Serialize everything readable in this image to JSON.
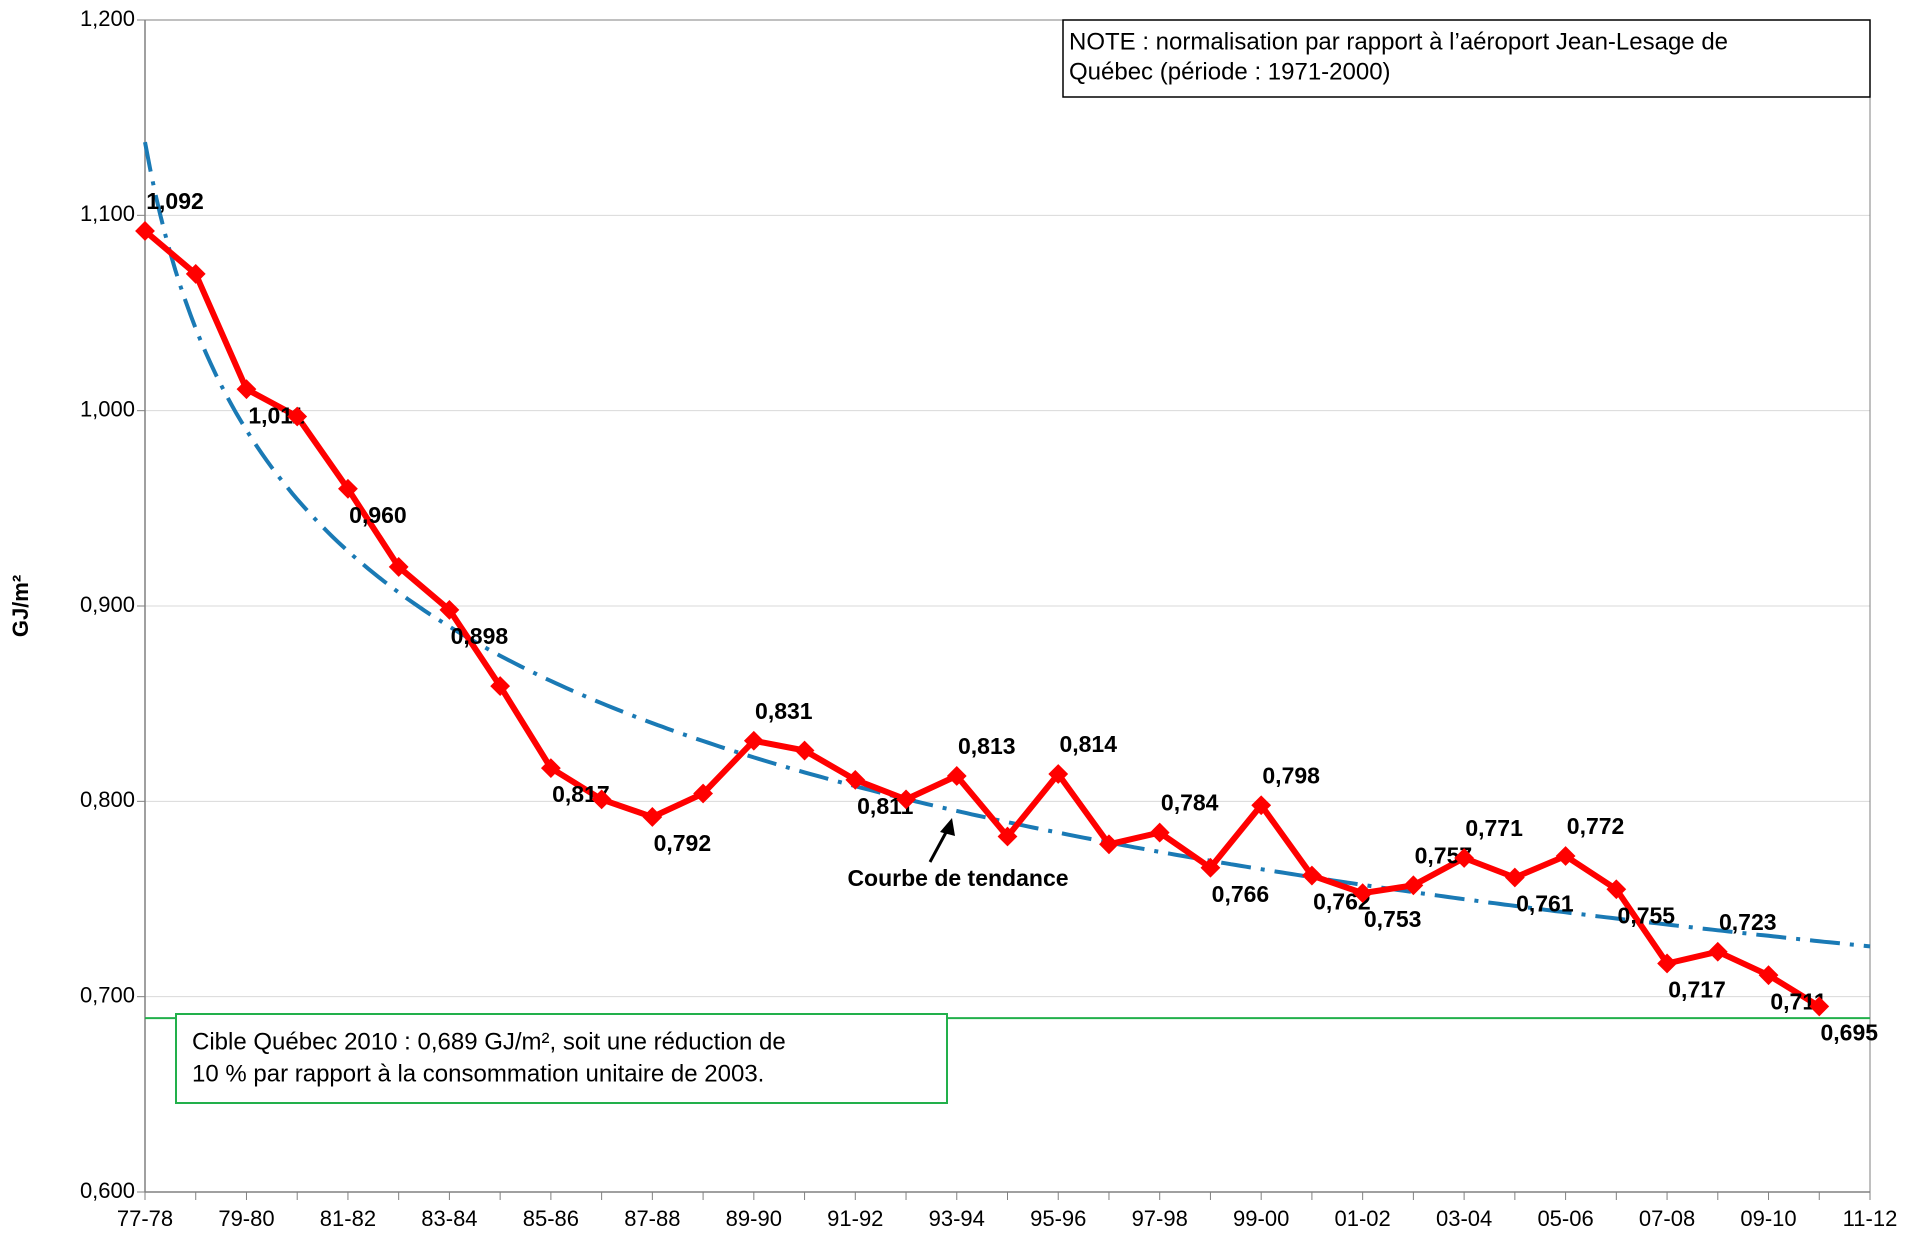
{
  "chart_data": {
    "type": "line",
    "y_label": "GJ/m²",
    "categories": [
      "77-78",
      null,
      "79-80",
      null,
      "81-82",
      null,
      "83-84",
      null,
      "85-86",
      null,
      "87-88",
      null,
      "89-90",
      null,
      "91-92",
      null,
      "93-94",
      null,
      "95-96",
      null,
      "97-98",
      null,
      "99-00",
      null,
      "01-02",
      null,
      "03-04",
      null,
      "05-06",
      null,
      "07-08",
      null,
      "09-10",
      null,
      "11-12"
    ],
    "series": [
      {
        "color": "#ff0000",
        "values": [
          1.092,
          1.07,
          1.011,
          0.997,
          0.96,
          0.92,
          0.898,
          0.859,
          0.817,
          0.801,
          0.792,
          0.804,
          0.831,
          0.826,
          0.811,
          0.801,
          0.813,
          0.782,
          0.814,
          0.778,
          0.784,
          0.766,
          0.798,
          0.762,
          0.753,
          0.757,
          0.771,
          0.761,
          0.772,
          0.755,
          0.717,
          0.723,
          0.711,
          0.695,
          null
        ],
        "value_labels": [
          "1,092",
          null,
          "1,011",
          null,
          "0,960",
          null,
          "0,898",
          null,
          "0,817",
          null,
          "0,792",
          null,
          "0,831",
          null,
          "0,811",
          null,
          "0,813",
          null,
          "0,814",
          null,
          "0,784",
          "0,766",
          "0,798",
          "0,762",
          "0,753",
          "0,757",
          "0,771",
          "0,761",
          "0,772",
          "0,755",
          "0,717",
          "0,723",
          "0,711",
          "0,695",
          null
        ]
      }
    ],
    "trend_color": "#1a7ab5",
    "trend_label": "Courbe de tendance",
    "target_value": 0.689,
    "target_color": "#22b04b",
    "target_text": [
      "Cible Québec 2010 : 0,689 GJ/m², soit une réduction de",
      "10 % par rapport à la consommation unitaire de 2003."
    ],
    "note": [
      "NOTE : normalisation par rapport à l’aéroport Jean-Lesage de",
      "Québec (période : 1971-2000)"
    ],
    "ylim": [
      0.6,
      1.2
    ],
    "yticks": [
      {
        "value": 0.6,
        "label": "0,600"
      },
      {
        "value": 0.7,
        "label": "0,700"
      },
      {
        "value": 0.8,
        "label": "0,800"
      },
      {
        "value": 0.9,
        "label": "0,900"
      },
      {
        "value": 1.0,
        "label": "1,000"
      },
      {
        "value": 1.1,
        "label": "1,100"
      },
      {
        "value": 1.2,
        "label": "1,200"
      }
    ],
    "grid": true
  }
}
